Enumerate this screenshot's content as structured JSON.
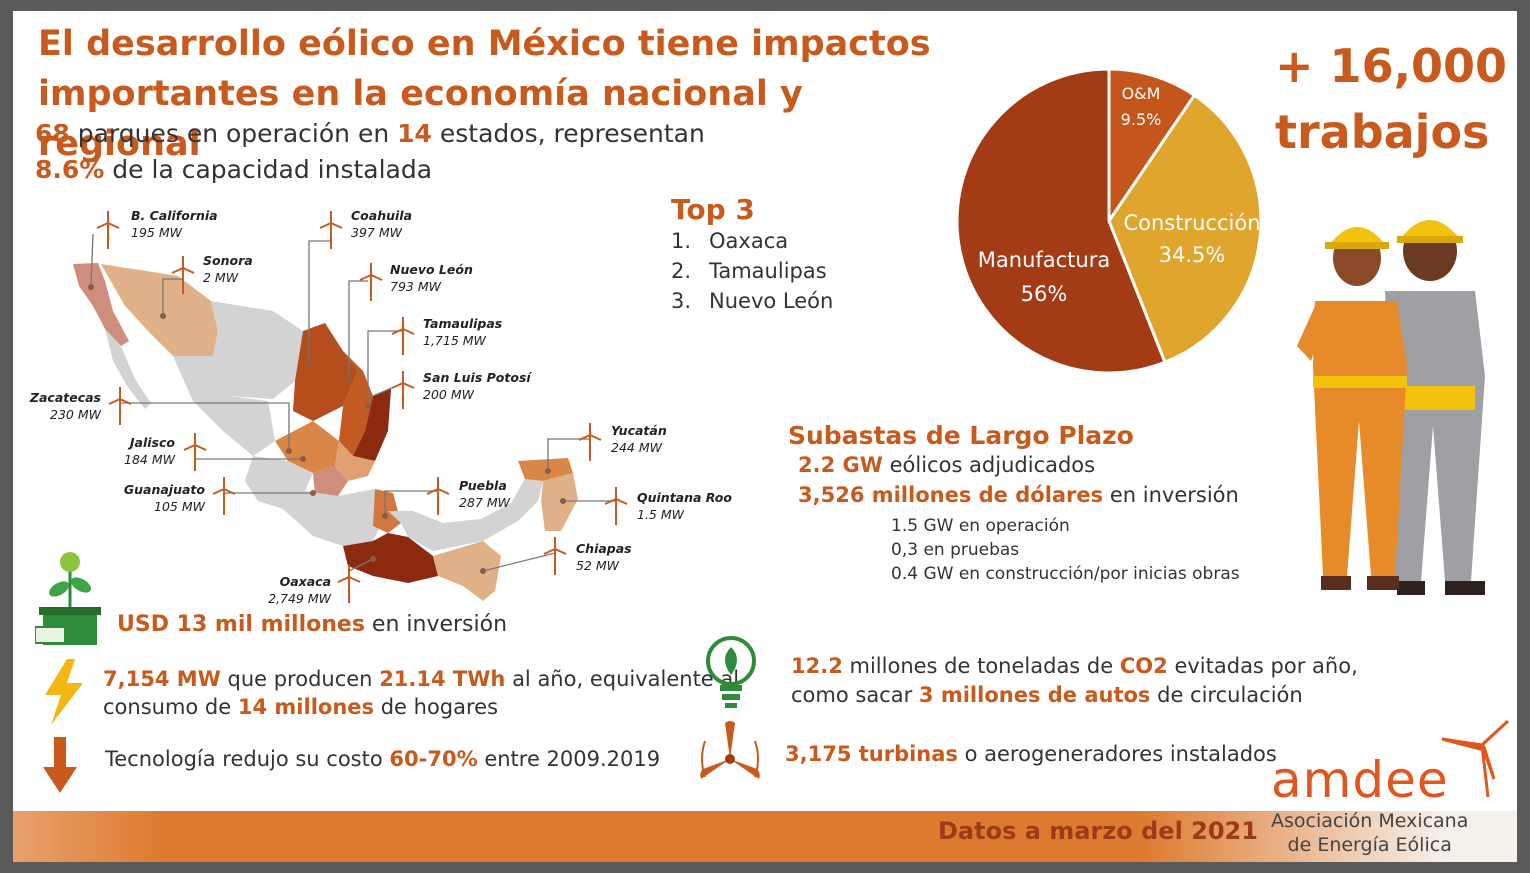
{
  "header": {
    "title_line1": "El desarrollo eólico en México tiene impactos",
    "title_line2": "importantes en la economía nacional y regional"
  },
  "summary": {
    "parks": "68",
    "parks_text": "parques en operación en",
    "states": "14",
    "states_text": "estados, representan",
    "capacity": "8.6%",
    "capacity_text": "de la capacidad instalada"
  },
  "map": {
    "states": [
      {
        "name": "B. California",
        "value": "195 MW"
      },
      {
        "name": "Sonora",
        "value": "2 MW"
      },
      {
        "name": "Coahuila",
        "value": "397 MW"
      },
      {
        "name": "Nuevo León",
        "value": "793 MW"
      },
      {
        "name": "Tamaulipas",
        "value": "1,715 MW"
      },
      {
        "name": "San Luis Potosí",
        "value": "200 MW"
      },
      {
        "name": "Zacatecas",
        "value": "230 MW"
      },
      {
        "name": "Jalisco",
        "value": "184 MW"
      },
      {
        "name": "Guanajuato",
        "value": "105 MW"
      },
      {
        "name": "Puebla",
        "value": "287 MW"
      },
      {
        "name": "Oaxaca",
        "value": "2,749 MW"
      },
      {
        "name": "Yucatán",
        "value": "244 MW"
      },
      {
        "name": "Quintana Roo",
        "value": "1.5 MW"
      },
      {
        "name": "Chiapas",
        "value": "52 MW"
      }
    ]
  },
  "top3": {
    "heading": "Top 3",
    "items": [
      {
        "num": "1.",
        "name": "Oaxaca"
      },
      {
        "num": "2.",
        "name": "Tamaulipas"
      },
      {
        "num": "3.",
        "name": "Nuevo León"
      }
    ]
  },
  "jobs": {
    "line1": "+ 16,000",
    "line2": "trabajos"
  },
  "pie": {
    "slices": [
      {
        "label": "Manufactura",
        "value": 56,
        "display": "56%",
        "color": "#a33b14"
      },
      {
        "label": "O&M",
        "value": 9.5,
        "display": "9.5%",
        "color": "#c4561b"
      },
      {
        "label": "Construcción",
        "value": 34.5,
        "display": "34.5%",
        "color": "#e0a52c"
      }
    ]
  },
  "subastas": {
    "heading": "Subastas de Largo Plazo",
    "gw": "2.2 GW",
    "gw_text": "eólicos adjudicados",
    "investment": "3,526 millones de dólares",
    "investment_text": "en inversión",
    "details": [
      "1.5 GW en operación",
      "0,3 en pruebas",
      "0.4 GW en construcción/por inicias obras"
    ]
  },
  "facts": {
    "investment_hl": "USD 13 mil millones",
    "investment_text": "en inversión",
    "mw": "7,154 MW",
    "mw_text": "que producen",
    "twh": "21.14 TWh",
    "twh_text": "al año, equivalente al",
    "consumo_text": "consumo de",
    "homes": "14 millones",
    "homes_text": "de hogares",
    "tech_text": "Tecnología redujo su costo",
    "tech_pct": "60-70%",
    "tech_years": "entre 2009.2019",
    "co2_hl": "12.2",
    "co2_text": "millones de toneladas de",
    "co2_word": "CO2",
    "co2_text2": "evitadas por año,",
    "cars_text": "como sacar",
    "cars_hl": "3 millones de autos",
    "cars_text2": "de circulación",
    "turbines_hl": "3,175 turbinas",
    "turbines_text": "o aerogeneradores instalados"
  },
  "footer": {
    "text": "Datos a marzo del 2021"
  },
  "logo": {
    "brand": "amdee",
    "tag1": "Asociación Mexicana",
    "tag2": "de Energía Eólica"
  },
  "colors": {
    "accent": "#c75a1c",
    "dark_red": "#a33b14",
    "gold": "#e0a52c",
    "text": "#333333"
  }
}
